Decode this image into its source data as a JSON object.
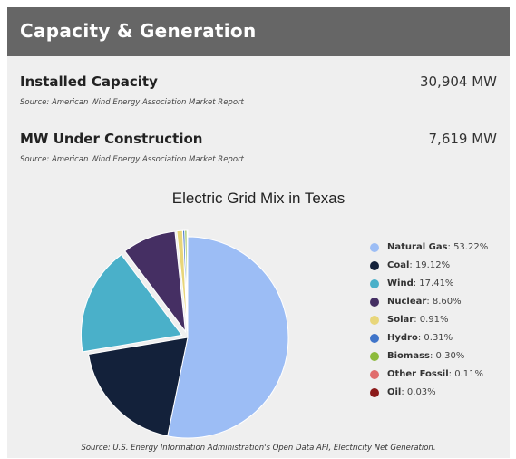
{
  "header": {
    "title": "Capacity & Generation"
  },
  "installed": {
    "label": "Installed Capacity",
    "value": "30,904 MW",
    "source": "Source: American Wind Energy Association Market Report"
  },
  "construction": {
    "label": "MW Under Construction",
    "value": "7,619 MW",
    "source": "Source: American Wind Energy Association Market Report"
  },
  "chart_source": "Source: U.S. Energy Information Administration's Open Data API, Electricity Net Generation.",
  "chart_data": {
    "type": "pie",
    "title": "Electric Grid Mix in Texas",
    "legend_position": "right",
    "slices": [
      {
        "name": "Natural Gas",
        "value": 53.22,
        "label": "53.22%",
        "color": "#9cbdf5"
      },
      {
        "name": "Coal",
        "value": 19.12,
        "label": "19.12%",
        "color": "#13213a"
      },
      {
        "name": "Wind",
        "value": 17.41,
        "label": "17.41%",
        "color": "#4ab0c9"
      },
      {
        "name": "Nuclear",
        "value": 8.6,
        "label": "8.60%",
        "color": "#452f63"
      },
      {
        "name": "Solar",
        "value": 0.91,
        "label": "0.91%",
        "color": "#e8d67a"
      },
      {
        "name": "Hydro",
        "value": 0.31,
        "label": "0.31%",
        "color": "#3f74c9"
      },
      {
        "name": "Biomass",
        "value": 0.3,
        "label": "0.30%",
        "color": "#8cba3c"
      },
      {
        "name": "Other Fossil",
        "value": 0.11,
        "label": "0.11%",
        "color": "#e06c6c"
      },
      {
        "name": "Oil",
        "value": 0.03,
        "label": "0.03%",
        "color": "#8b1a1a"
      }
    ]
  }
}
